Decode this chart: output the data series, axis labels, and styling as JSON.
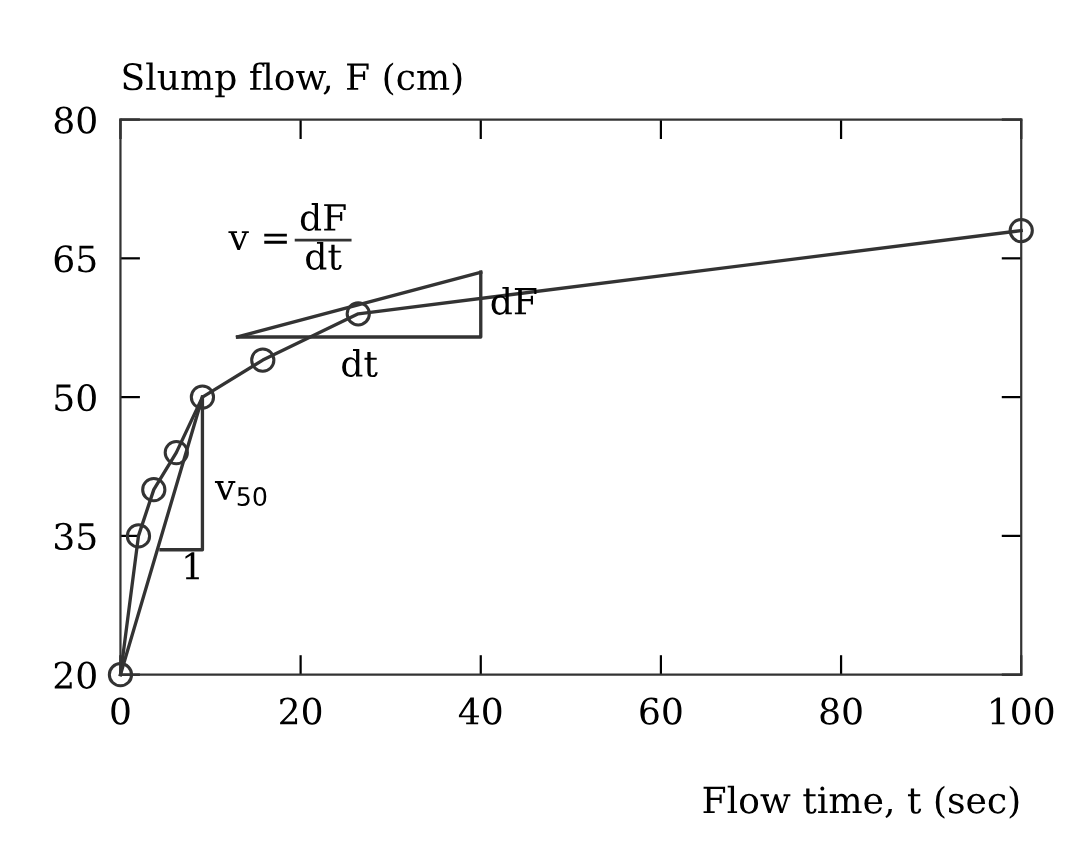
{
  "chart_data": {
    "type": "line",
    "xlabel": "Flow time, t (sec)",
    "ylabel": "Slump flow, F (cm)",
    "xlim": [
      0,
      100
    ],
    "ylim": [
      20,
      80
    ],
    "xticks": [
      0,
      20,
      40,
      60,
      80,
      100
    ],
    "yticks": [
      20,
      35,
      50,
      65,
      80
    ],
    "grid": false,
    "series": [
      {
        "color": "#333333",
        "marker": "circle",
        "x": [
          0,
          2,
          3.7,
          6.2,
          9.1,
          15.8,
          26.4,
          100
        ],
        "values": [
          20,
          35,
          40,
          44,
          50,
          54,
          59,
          68
        ]
      },
      {
        "color": "#333333",
        "marker": "none",
        "x": [
          0,
          9.1
        ],
        "values": [
          20,
          50
        ]
      },
      {
        "color": "#333333",
        "marker": "none",
        "x": [
          9.1,
          9.1,
          4.5
        ],
        "values": [
          50,
          33.5,
          33.5
        ]
      },
      {
        "color": "#333333",
        "marker": "none",
        "x": [
          13,
          40
        ],
        "values": [
          56.5,
          63.5
        ]
      },
      {
        "color": "#333333",
        "marker": "none",
        "x": [
          40,
          40,
          13
        ],
        "values": [
          63.5,
          56.5,
          56.5
        ]
      }
    ],
    "annotations": [
      "v$_{50}$",
      "1",
      "dF",
      "dt",
      "v =",
      "dF",
      "dt"
    ]
  }
}
